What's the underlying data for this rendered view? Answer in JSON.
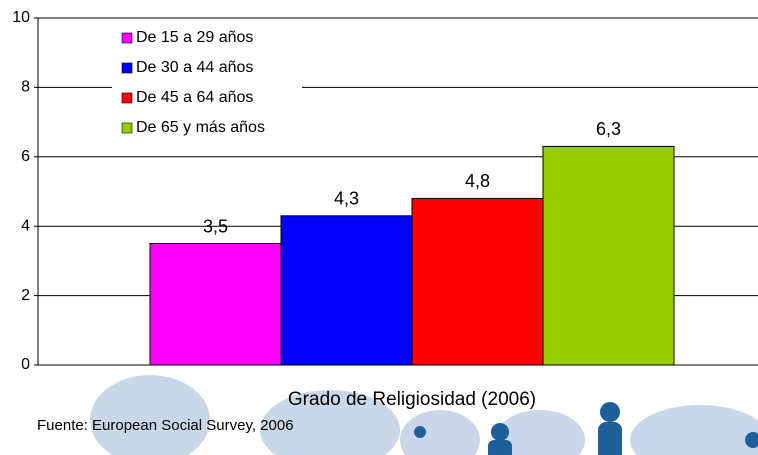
{
  "chart_data": {
    "type": "bar",
    "categories": [
      "Grado de Religiosidad (2006)"
    ],
    "series": [
      {
        "name": "De 15 a 29 años",
        "color": "#ff00ff",
        "values": [
          3.5
        ],
        "value_labels": [
          "3,5"
        ]
      },
      {
        "name": "De 30 a 44 años",
        "color": "#0000ff",
        "values": [
          4.3
        ],
        "value_labels": [
          "4,3"
        ]
      },
      {
        "name": "De 45 a 64 años",
        "color": "#ff0000",
        "values": [
          4.8
        ],
        "value_labels": [
          "4,8"
        ]
      },
      {
        "name": "De 65 y más años",
        "color": "#99cc00",
        "values": [
          6.3
        ],
        "value_labels": [
          "6,3"
        ]
      }
    ],
    "ylim": [
      0,
      10
    ],
    "yticks": [
      0,
      2,
      4,
      6,
      8,
      10
    ],
    "grid": true,
    "legend": "top-left",
    "source": "Fuente: European Social Survey, 2006"
  }
}
